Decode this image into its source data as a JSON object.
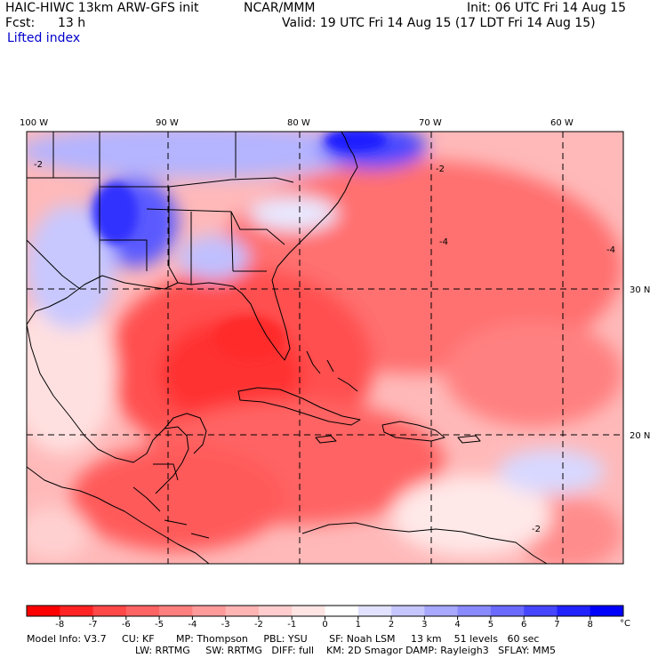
{
  "header": {
    "title": "HAIC-HIWC 13km ARW-GFS init",
    "org": "NCAR/MMM",
    "init": "Init: 06 UTC Fri 14 Aug 15",
    "fcst_label": "Fcst:",
    "fcst_value": "13 h",
    "valid": "Valid: 19 UTC Fri 14 Aug 15 (17 LDT Fri 14 Aug 15)",
    "field": "Lifted index"
  },
  "map": {
    "lon_labels": [
      "100 W",
      "90 W",
      "80 W",
      "70 W",
      "60 W"
    ],
    "lat_labels": [
      "30 N",
      "20 N"
    ],
    "contour_labels": [
      "-2",
      "-2",
      "-4",
      "-4",
      "-2"
    ],
    "colors": {
      "land_outline": "#000000",
      "grid_dash": "#000000"
    }
  },
  "colorbar": {
    "ticks": [
      "-8",
      "-7",
      "-6",
      "-5",
      "-4",
      "-3",
      "-2",
      "-1",
      "0",
      "1",
      "2",
      "3",
      "4",
      "5",
      "6",
      "7",
      "8"
    ],
    "unit": "°C",
    "colors": [
      "#ff0000",
      "#ff2222",
      "#ff4848",
      "#ff6464",
      "#ff7f7f",
      "#ff9a9a",
      "#ffb4b4",
      "#ffcdcd",
      "#ffe4e4",
      "#ffffff",
      "#e2e2ff",
      "#c6c6ff",
      "#a8a8ff",
      "#8a8aff",
      "#6a6aff",
      "#4646ff",
      "#2222ff",
      "#0000ff"
    ]
  },
  "footer": {
    "line1": "Model Info: V3.7     CU: KF       MP: Thompson     PBL: YSU       SF: Noah LSM     13 km    51 levels   60 sec",
    "line2": "LW: RRTMG     SW: RRTMG   DIFF: full    KM: 2D Smagor DAMP: Rayleigh3   SFLAY: MM5"
  }
}
